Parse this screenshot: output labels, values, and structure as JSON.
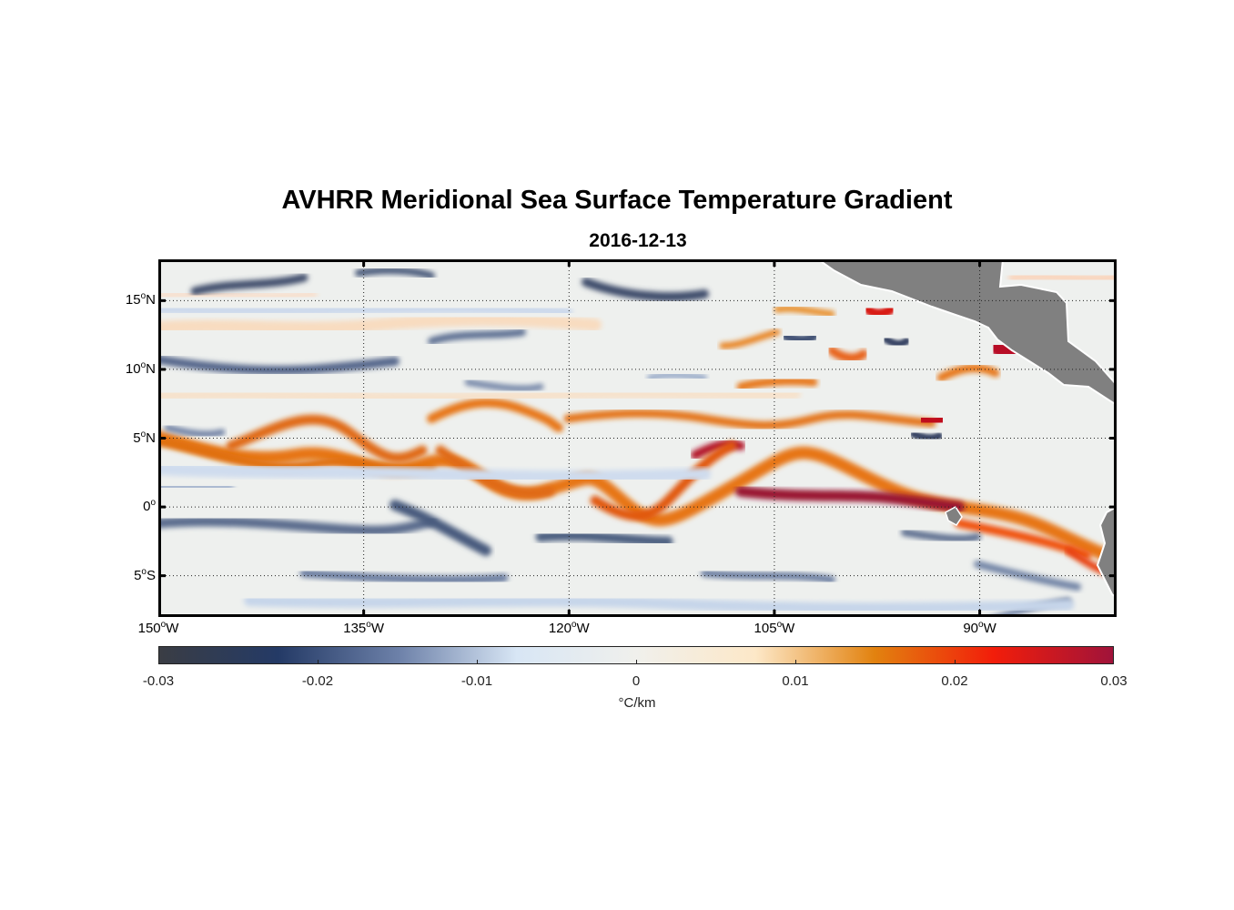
{
  "title": "AVHRR Meridional Sea Surface Temperature Gradient",
  "subtitle": "2016-12-13",
  "map": {
    "extent": {
      "lon_min": -150,
      "lon_max": -80,
      "lat_min": -8,
      "lat_max": 18
    },
    "lat_ticks": [
      {
        "value": 15,
        "num": "15",
        "hem": "N"
      },
      {
        "value": 10,
        "num": "10",
        "hem": "N"
      },
      {
        "value": 5,
        "num": "5",
        "hem": "N"
      },
      {
        "value": 0,
        "num": "0",
        "hem": ""
      },
      {
        "value": -5,
        "num": "5",
        "hem": "S"
      }
    ],
    "lon_ticks": [
      {
        "value": -150,
        "num": "150",
        "hem": "W"
      },
      {
        "value": -135,
        "num": "135",
        "hem": "W"
      },
      {
        "value": -120,
        "num": "120",
        "hem": "W"
      },
      {
        "value": -105,
        "num": "105",
        "hem": "W"
      },
      {
        "value": -90,
        "num": "90",
        "hem": "W"
      }
    ],
    "degree_symbol": "o",
    "land_color": "#808080",
    "grid": "dotted"
  },
  "colorbar": {
    "min": -0.03,
    "max": 0.03,
    "ticks": [
      {
        "value": -0.03,
        "label": "-0.03"
      },
      {
        "value": -0.02,
        "label": "-0.02"
      },
      {
        "value": -0.01,
        "label": "-0.01"
      },
      {
        "value": 0,
        "label": "0"
      },
      {
        "value": 0.01,
        "label": "0.01"
      },
      {
        "value": 0.02,
        "label": "0.02"
      },
      {
        "value": 0.03,
        "label": "0.03"
      }
    ],
    "units": "°C/km",
    "colors": [
      "#3a3d44",
      "#243a66",
      "#6c80a8",
      "#d8e6f5",
      "#f0f0ec",
      "#fde8c8",
      "#e2820f",
      "#f21d0a",
      "#a0133a"
    ]
  }
}
